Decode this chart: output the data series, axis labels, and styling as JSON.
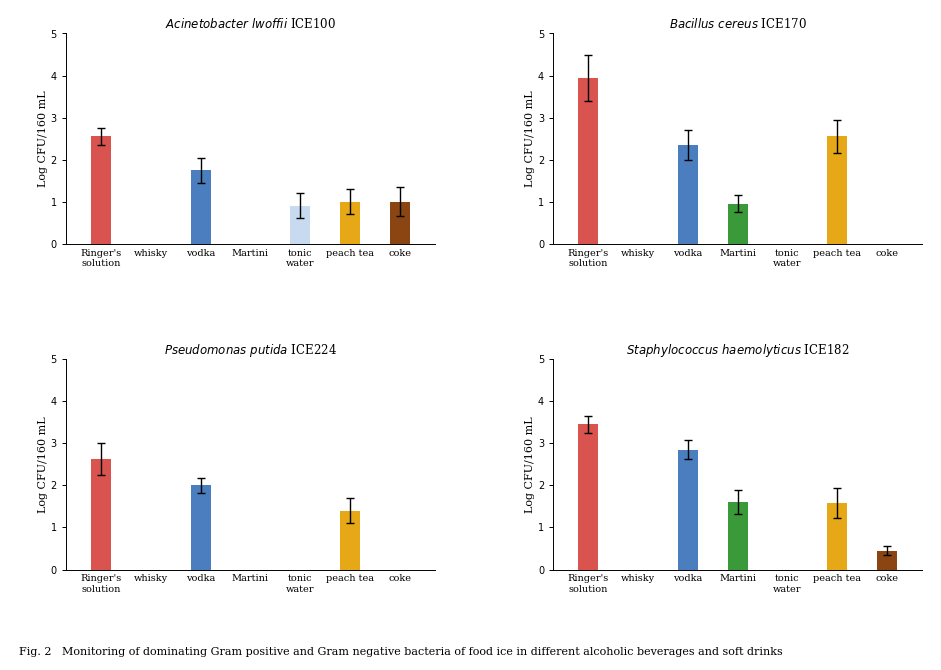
{
  "categories": [
    "Ringer's\nsolution",
    "whisky",
    "vodka",
    "Martini",
    "tonic\nwater",
    "peach tea",
    "coke"
  ],
  "subplots": [
    {
      "title_italic": "Acinetobacter lwoffii",
      "title_normal": " ICE100",
      "values": [
        2.55,
        0,
        1.75,
        0,
        0.9,
        1.0,
        1.0
      ],
      "errors": [
        0.2,
        0,
        0.3,
        0,
        0.3,
        0.3,
        0.35
      ],
      "colors": [
        "#d9534f",
        null,
        "#4a7ebf",
        null,
        "#c8daf0",
        "#e6a817",
        "#8b4513"
      ],
      "row": 0,
      "col": 0
    },
    {
      "title_italic": "Bacillus cereus",
      "title_normal": " ICE170",
      "values": [
        3.95,
        0,
        2.35,
        0.95,
        0,
        2.55,
        0
      ],
      "errors": [
        0.55,
        0,
        0.35,
        0.2,
        0,
        0.4,
        0
      ],
      "colors": [
        "#d9534f",
        null,
        "#4a7ebf",
        "#3a9a3a",
        null,
        "#e6a817",
        null
      ],
      "row": 0,
      "col": 1
    },
    {
      "title_italic": "Pseudomonas putida",
      "title_normal": " ICE224",
      "values": [
        2.62,
        0,
        2.0,
        0,
        0,
        1.4,
        0
      ],
      "errors": [
        0.38,
        0,
        0.18,
        0,
        0,
        0.3,
        0
      ],
      "colors": [
        "#d9534f",
        null,
        "#4a7ebf",
        null,
        null,
        "#e6a817",
        null
      ],
      "row": 1,
      "col": 0
    },
    {
      "title_italic": "Staphylococcus haemolyticus",
      "title_normal": " ICE182",
      "values": [
        3.45,
        0,
        2.85,
        1.6,
        0,
        1.58,
        0.45
      ],
      "errors": [
        0.2,
        0,
        0.22,
        0.28,
        0,
        0.35,
        0.1
      ],
      "colors": [
        "#d9534f",
        null,
        "#4a7ebf",
        "#3a9a3a",
        null,
        "#e6a817",
        "#8b4513"
      ],
      "row": 1,
      "col": 1
    }
  ],
  "ylabel": "Log CFU/160 mL",
  "ylim": [
    0,
    5
  ],
  "yticks": [
    0,
    1,
    2,
    3,
    4,
    5
  ],
  "figcaption": "Fig. 2   Monitoring of dominating Gram positive and Gram negative bacteria of food ice in different alcoholic beverages and soft drinks",
  "background_color": "#ffffff",
  "bar_width": 0.4,
  "title_fontsize": 8.5,
  "tick_fontsize": 7,
  "ylabel_fontsize": 8,
  "caption_fontsize": 8
}
